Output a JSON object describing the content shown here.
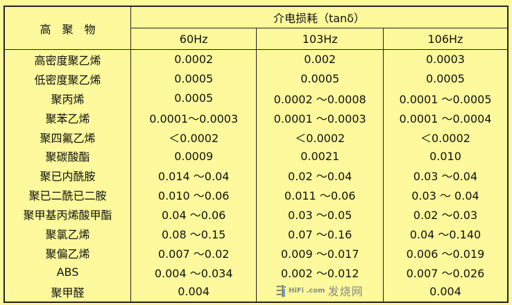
{
  "header": {
    "polymer": "高　聚　物",
    "group": "介电损耗（tanδ）",
    "frequencies": [
      "60Hz",
      "103Hz",
      "106Hz"
    ]
  },
  "rows": [
    {
      "name": "高密度聚乙烯",
      "values": [
        "0.0002",
        "0.002",
        "0.0003"
      ]
    },
    {
      "name": "低密度聚乙烯",
      "values": [
        "0.0005",
        "0.0005",
        "0.0005"
      ]
    },
    {
      "name": "聚丙烯",
      "values": [
        "0.0005",
        "0.0002 ～0.0008",
        "0.0001 ～0.0005"
      ]
    },
    {
      "name": "聚苯乙烯",
      "values": [
        "0.0001～0.0003",
        "0.0001 ～0.0003",
        "0.0001 ～0.0004"
      ]
    },
    {
      "name": "聚四氟乙烯",
      "values": [
        "＜0.0002",
        "＜0.0002",
        "＜0.0002"
      ]
    },
    {
      "name": "聚碳酸酯",
      "values": [
        "0.0009",
        "0.0021",
        "0.010"
      ]
    },
    {
      "name": "聚已内酰胺",
      "values": [
        "0.014 ～0.04",
        "0.02 ～0.04",
        "0.03 ～0.04"
      ]
    },
    {
      "name": "聚已二酰已二胺",
      "values": [
        "0.010 ～0.06",
        "0.011 ～0.06",
        "0.03 ～ 0.04"
      ]
    },
    {
      "name": "聚甲基丙烯酸甲酯",
      "values": [
        "0.04 ～0.06",
        "0.03 ～0.05",
        "0.02 ～0.03"
      ]
    },
    {
      "name": "聚氯乙烯",
      "values": [
        "0.08 ～0.15",
        "0.07 ～0.16",
        "0.04 ～0.140"
      ]
    },
    {
      "name": "聚偏乙烯",
      "values": [
        "0.007 ～0.02",
        "0.009 ～0.017",
        "0.006 ～0.019"
      ]
    },
    {
      "name": "ABS",
      "values": [
        "0.004 ～0.034",
        "0.002 ～0.012",
        "0.007 ～0.026"
      ]
    },
    {
      "name": "聚甲醛",
      "values": [
        "0.004",
        "",
        "0.004"
      ]
    }
  ],
  "watermark": {
    "text": "发烧网",
    "small": "HiFi   .com"
  }
}
